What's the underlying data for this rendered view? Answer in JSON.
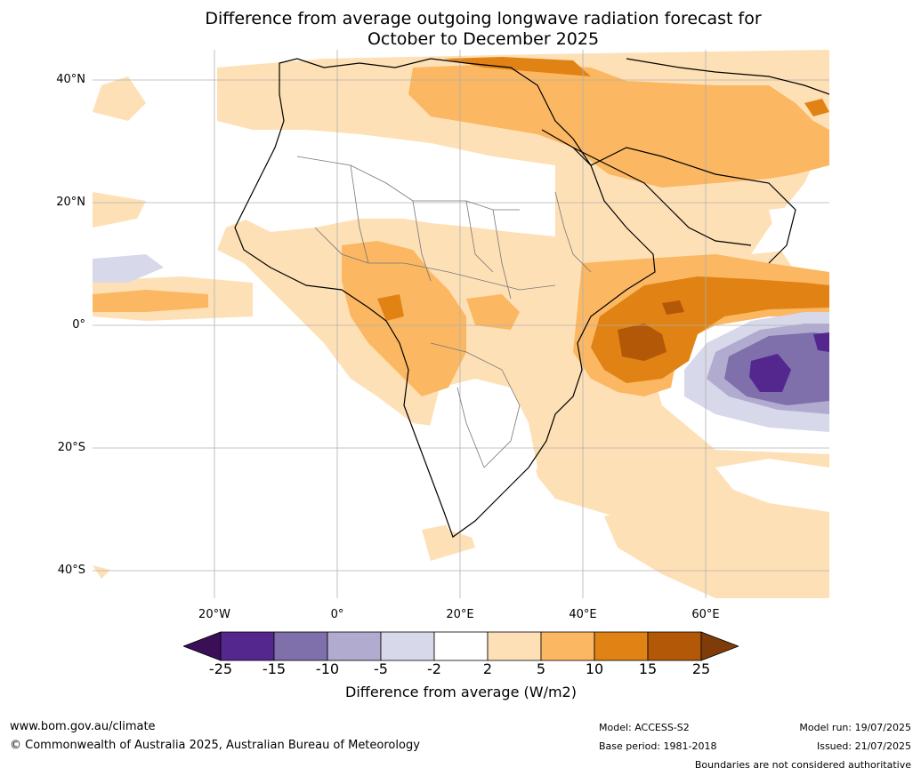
{
  "title": {
    "line1": "Difference from average outgoing longwave radiation forecast for",
    "line2": "October to December 2025"
  },
  "map": {
    "lat_labels": [
      "40°N",
      "20°N",
      "0°",
      "20°S",
      "40°S"
    ],
    "lon_labels": [
      "20°W",
      "0°",
      "20°E",
      "40°E",
      "60°E"
    ],
    "extent": {
      "lon_min": -40,
      "lon_max": 80,
      "lat_min": -45,
      "lat_max": 45
    },
    "grid": true
  },
  "colorbar": {
    "label": "Difference from average (W/m2)",
    "ticks": [
      "-25",
      "-15",
      "-10",
      "-5",
      "-2",
      "2",
      "5",
      "10",
      "15",
      "25"
    ],
    "colors": [
      "#3b0f58",
      "#54278f",
      "#7f6fab",
      "#b1abd0",
      "#d8d8eb",
      "#ffffff",
      "#fee0b6",
      "#fbb761",
      "#e08214",
      "#b35806",
      "#7f3b08"
    ]
  },
  "footer": {
    "website": "www.bom.gov.au/climate",
    "copyright": "© Commonwealth of Australia 2025, Australian Bureau of Meteorology",
    "model": "Model: ACCESS-S2",
    "base_period": "Base period: 1981-2018",
    "model_run": "Model run: 19/07/2025",
    "issued": "Issued: 21/07/2025",
    "disclaimer": "Boundaries are not considered authoritative"
  }
}
